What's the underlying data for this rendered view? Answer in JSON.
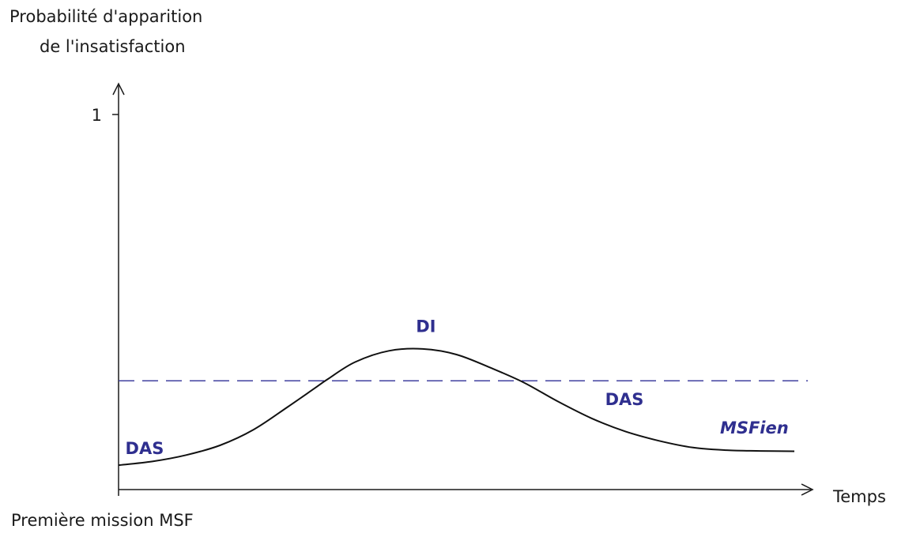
{
  "chart_data": {
    "type": "line",
    "ylabel_lines": [
      "Probabilité d'apparition",
      "de l'insatisfaction"
    ],
    "xlabel": "Temps",
    "origin_label": "Première mission MSF",
    "yticks": [
      {
        "value": 1,
        "label": "1"
      }
    ],
    "ylim": [
      0,
      1.1
    ],
    "xlim": [
      0,
      1.02
    ],
    "grid": false,
    "threshold": {
      "y": 0.29,
      "style": "dashed",
      "color": "#3f3f9f"
    },
    "series": [
      {
        "color": "#111111",
        "points": [
          [
            0.0,
            0.065
          ],
          [
            0.05,
            0.075
          ],
          [
            0.1,
            0.092
          ],
          [
            0.15,
            0.118
          ],
          [
            0.2,
            0.16
          ],
          [
            0.25,
            0.22
          ],
          [
            0.29,
            0.27
          ],
          [
            0.31,
            0.295
          ],
          [
            0.35,
            0.34
          ],
          [
            0.4,
            0.37
          ],
          [
            0.45,
            0.375
          ],
          [
            0.5,
            0.36
          ],
          [
            0.55,
            0.325
          ],
          [
            0.6,
            0.285
          ],
          [
            0.65,
            0.235
          ],
          [
            0.7,
            0.19
          ],
          [
            0.75,
            0.155
          ],
          [
            0.8,
            0.13
          ],
          [
            0.85,
            0.112
          ],
          [
            0.9,
            0.105
          ],
          [
            0.95,
            0.103
          ],
          [
            1.0,
            0.102
          ]
        ]
      }
    ],
    "annotations": [
      {
        "text": "DAS",
        "x": 0.01,
        "y": 0.095,
        "color": "#2f2f8f",
        "italic": false
      },
      {
        "text": "DI",
        "x": 0.44,
        "y": 0.42,
        "color": "#2f2f8f",
        "italic": false
      },
      {
        "text": "DAS",
        "x": 0.72,
        "y": 0.225,
        "color": "#2f2f8f",
        "italic": false
      },
      {
        "text": "MSFien",
        "x": 0.89,
        "y": 0.15,
        "color": "#2f2f8f",
        "italic": true
      }
    ]
  }
}
